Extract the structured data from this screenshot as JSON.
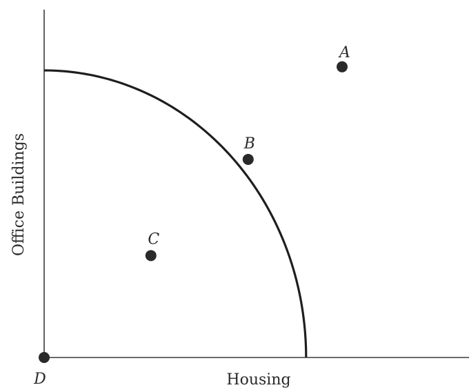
{
  "chart_data": {
    "type": "scatter",
    "title": "",
    "xlabel": "Housing",
    "ylabel": "Office Buildings",
    "xlim": [
      0,
      10
    ],
    "ylim": [
      0,
      10
    ],
    "grid": false,
    "frontier": {
      "shape": "concave-curve",
      "x_intercept": 6.33,
      "y_intercept": 8.0
    },
    "points": [
      {
        "label": "A",
        "x": 7.2,
        "y": 8.1
      },
      {
        "label": "B",
        "x": 4.93,
        "y": 5.52
      },
      {
        "label": "C",
        "x": 2.58,
        "y": 2.84
      },
      {
        "label": "D",
        "x": 0,
        "y": 0
      }
    ],
    "colors": {
      "axis": "#3a3a3a",
      "curve": "#1e1e1e",
      "point": "#2a2a2a"
    }
  }
}
